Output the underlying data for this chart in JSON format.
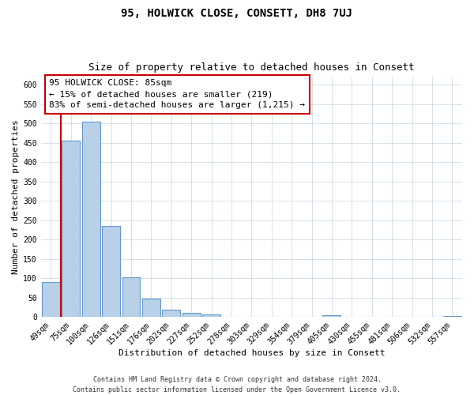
{
  "title": "95, HOLWICK CLOSE, CONSETT, DH8 7UJ",
  "subtitle": "Size of property relative to detached houses in Consett",
  "xlabel": "Distribution of detached houses by size in Consett",
  "ylabel": "Number of detached properties",
  "bar_labels": [
    "49sqm",
    "75sqm",
    "100sqm",
    "126sqm",
    "151sqm",
    "176sqm",
    "202sqm",
    "227sqm",
    "252sqm",
    "278sqm",
    "303sqm",
    "329sqm",
    "354sqm",
    "379sqm",
    "405sqm",
    "430sqm",
    "455sqm",
    "481sqm",
    "506sqm",
    "532sqm",
    "557sqm"
  ],
  "bar_values": [
    90,
    455,
    505,
    235,
    102,
    48,
    20,
    12,
    8,
    0,
    0,
    0,
    0,
    0,
    5,
    0,
    0,
    0,
    0,
    0,
    3
  ],
  "bar_color": "#b8d0e8",
  "bar_edgecolor": "#6699cc",
  "bar_linewidth": 0.8,
  "vline_x": 0.5,
  "vline_color": "#cc0000",
  "vline_linewidth": 1.5,
  "annotation_box_text": "95 HOLWICK CLOSE: 85sqm\n← 15% of detached houses are smaller (219)\n83% of semi-detached houses are larger (1,215) →",
  "box_edgecolor": "#cc0000",
  "ylim": [
    0,
    620
  ],
  "yticks": [
    0,
    50,
    100,
    150,
    200,
    250,
    300,
    350,
    400,
    450,
    500,
    550,
    600
  ],
  "footer_line1": "Contains HM Land Registry data © Crown copyright and database right 2024.",
  "footer_line2": "Contains public sector information licensed under the Open Government Licence v3.0.",
  "bg_color": "#ffffff",
  "grid_color": "#c8d4e0",
  "title_fontsize": 10,
  "subtitle_fontsize": 9,
  "axis_label_fontsize": 8,
  "tick_fontsize": 7,
  "annotation_fontsize": 8,
  "footer_fontsize": 6
}
